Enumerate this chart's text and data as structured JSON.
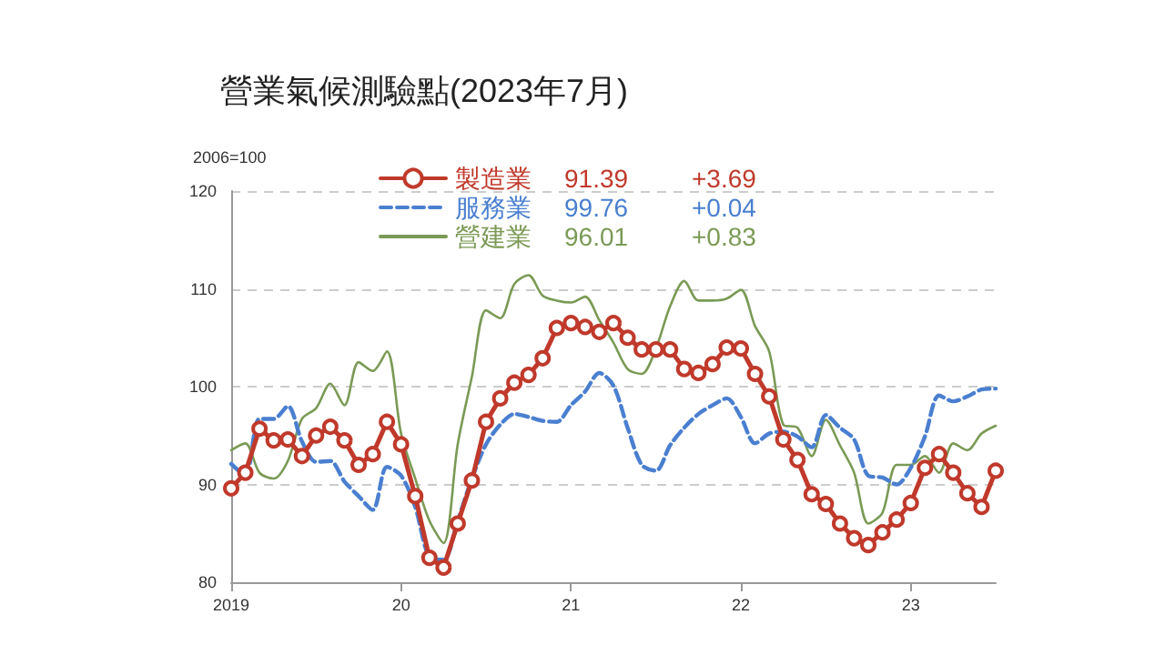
{
  "chart_data": {
    "type": "line",
    "title": "營業氣候測驗點(2023年7月)",
    "ylabel": "2006=100",
    "categories": [
      "2019",
      null,
      null,
      null,
      null,
      null,
      null,
      null,
      null,
      null,
      null,
      null,
      "20",
      null,
      null,
      null,
      null,
      null,
      null,
      null,
      null,
      null,
      null,
      null,
      "21",
      null,
      null,
      null,
      null,
      null,
      null,
      null,
      null,
      null,
      null,
      null,
      "22",
      null,
      null,
      null,
      null,
      null,
      null,
      null,
      null,
      null,
      null,
      null,
      "23",
      null,
      null,
      null,
      null,
      null,
      null
    ],
    "series": [
      {
        "name": "製造業",
        "color": "#c0392b",
        "marker": "circle",
        "line_style": "solid",
        "values": [
          89.6,
          91.2,
          95.7,
          94.5,
          94.6,
          92.9,
          95.0,
          95.9,
          94.5,
          92.0,
          93.1,
          96.4,
          94.1,
          88.8,
          82.5,
          81.5,
          86.0,
          90.4,
          96.4,
          98.8,
          100.4,
          101.2,
          102.9,
          106.0,
          106.5,
          106.1,
          105.6,
          106.5,
          105.0,
          103.8,
          103.8,
          103.8,
          101.8,
          101.4,
          102.3,
          104.0,
          103.9,
          101.3,
          99.0,
          94.6,
          92.5,
          89.0,
          88.0,
          86.0,
          84.5,
          83.8,
          85.1,
          86.4,
          88.1,
          91.7,
          93.1,
          91.2,
          89.1,
          87.7,
          91.4
        ]
      },
      {
        "name": "服務業",
        "color": "#4a7fd0",
        "marker": "none",
        "line_style": "dashed",
        "values": [
          92.1,
          90.9,
          96.7,
          96.7,
          98.0,
          94.4,
          92.3,
          92.4,
          90.3,
          88.8,
          87.4,
          91.8,
          90.9,
          87.7,
          82.6,
          82.3,
          86.3,
          90.6,
          94.1,
          96.1,
          97.2,
          96.9,
          96.5,
          96.4,
          98.1,
          99.5,
          101.4,
          100.1,
          95.8,
          92.0,
          91.4,
          94.0,
          95.8,
          97.2,
          98.1,
          98.8,
          96.9,
          94.2,
          95.2,
          95.4,
          94.9,
          93.8,
          97.1,
          95.8,
          94.6,
          90.9,
          90.7,
          90.0,
          91.7,
          94.9,
          99.1,
          98.5,
          99.0,
          99.7,
          99.8
        ]
      },
      {
        "name": "營建業",
        "color": "#7a9a55",
        "marker": "none",
        "line_style": "solid",
        "values": [
          93.5,
          94.2,
          91.2,
          90.6,
          92.4,
          96.7,
          97.8,
          100.3,
          98.1,
          102.5,
          101.6,
          103.6,
          95.2,
          90.6,
          86.3,
          84.0,
          94.1,
          101.0,
          107.8,
          107.0,
          110.5,
          111.4,
          109.3,
          108.8,
          108.6,
          109.2,
          106.8,
          104.5,
          101.8,
          101.3,
          103.9,
          108.2,
          110.8,
          108.8,
          108.8,
          109.0,
          109.9,
          106.2,
          103.6,
          96.1,
          95.8,
          92.9,
          96.6,
          94.0,
          91.2,
          86.0,
          87.1,
          92.0,
          92.0,
          92.9,
          91.2,
          94.2,
          93.5,
          95.2,
          96.0
        ]
      }
    ],
    "annotations": [
      "91.39",
      "+3.69",
      "99.76",
      "+0.04",
      "96.01",
      "+0.83"
    ],
    "ylim": [
      80,
      120
    ],
    "yticks": [
      80,
      90,
      100,
      110,
      120
    ],
    "grid": "y",
    "legend": "top"
  }
}
